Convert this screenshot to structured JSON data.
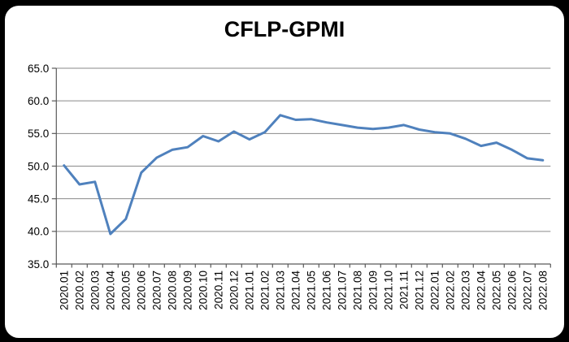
{
  "page": {
    "background_color": "#000000",
    "card_background_color": "#ffffff"
  },
  "chart_data": {
    "type": "line",
    "title": "CFLP-GPMI",
    "xlabel": "",
    "ylabel": "",
    "ylim": [
      35,
      65
    ],
    "ytick_step": 5,
    "ytick_labels": [
      "65.0",
      "60.0",
      "55.0",
      "50.0",
      "45.0",
      "40.0",
      "35.0"
    ],
    "grid": true,
    "legend_position": "none",
    "categories": [
      "2020.01",
      "2020.02",
      "2020.03",
      "2020.04",
      "2020.05",
      "2020.06",
      "2020.07",
      "2020.08",
      "2020.09",
      "2020.10",
      "2020.11",
      "2020.12",
      "2021.01",
      "2021.02",
      "2021.03",
      "2021.04",
      "2021.05",
      "2021.06",
      "2021.07",
      "2021.08",
      "2021.09",
      "2021.10",
      "2021.11",
      "2021.12",
      "2022.01",
      "2022.02",
      "2022.03",
      "2022.04",
      "2022.05",
      "2022.06",
      "2022.07",
      "2022.08"
    ],
    "series": [
      {
        "name": "CFLP-GPMI",
        "color": "#4F81BD",
        "values": [
          50.1,
          47.2,
          47.6,
          39.6,
          41.9,
          49.0,
          51.3,
          52.5,
          52.9,
          54.6,
          53.8,
          55.3,
          54.1,
          55.2,
          57.8,
          57.1,
          57.2,
          56.7,
          56.3,
          55.9,
          55.7,
          55.9,
          56.3,
          55.6,
          55.2,
          55.0,
          54.2,
          53.1,
          53.6,
          52.5,
          51.2,
          50.9
        ]
      }
    ]
  },
  "colors": {
    "line": "#4F81BD",
    "gridline": "#8a8a8a",
    "axis": "#595959",
    "text": "#000000"
  }
}
